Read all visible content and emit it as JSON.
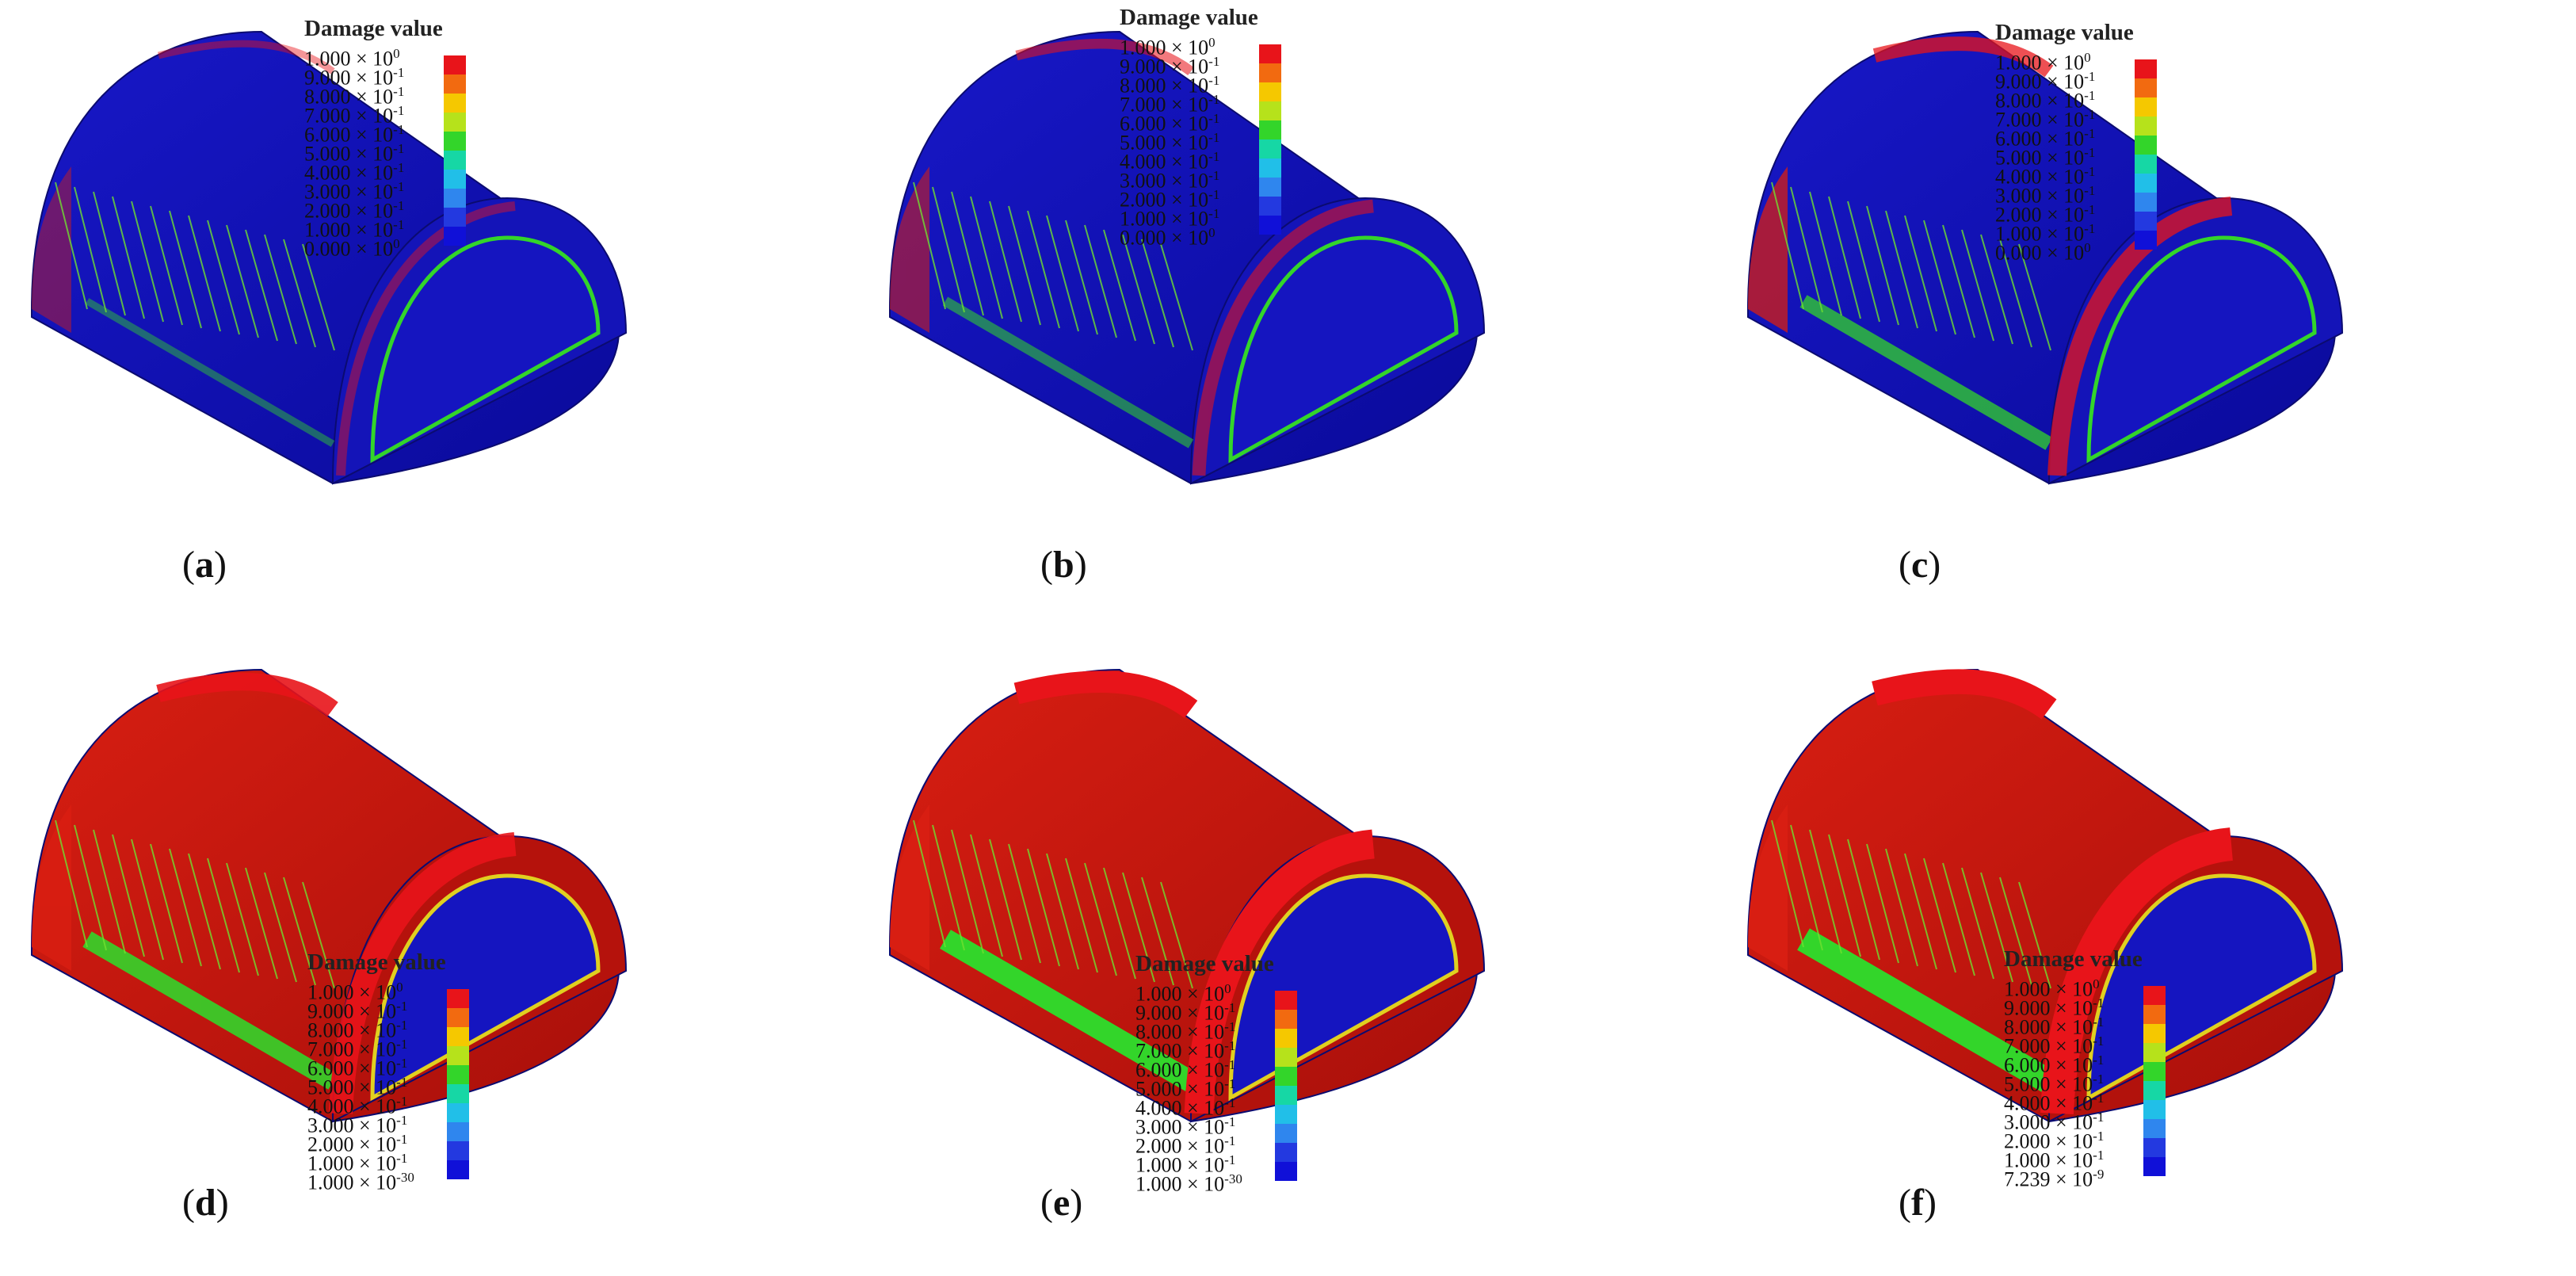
{
  "legend_title": "Damage value",
  "colorbar_colors": [
    "#e8141a",
    "#f26a10",
    "#f5c800",
    "#b6e21b",
    "#33d52a",
    "#16d7a5",
    "#21bfe8",
    "#2f86ee",
    "#2339e0",
    "#1010d8"
  ],
  "panels": [
    {
      "label": "a",
      "ticks": [
        "1.000 × 10",
        "9.000 × 10",
        "8.000 × 10",
        "7.000 × 10",
        "6.000 × 10",
        "5.000 × 10",
        "4.000 × 10",
        "3.000 × 10",
        "2.000 × 10",
        "1.000 × 10",
        "0.000 × 10"
      ],
      "exps": [
        "0",
        "-1",
        "-1",
        "-1",
        "-1",
        "-1",
        "-1",
        "-1",
        "-1",
        "-1",
        "0"
      ],
      "red_fraction": 0.1
    },
    {
      "label": "b",
      "ticks": [
        "1.000 × 10",
        "9.000 × 10",
        "8.000 × 10",
        "7.000 × 10",
        "6.000 × 10",
        "5.000 × 10",
        "4.000 × 10",
        "3.000 × 10",
        "2.000 × 10",
        "1.000 × 10",
        "0.000 × 10"
      ],
      "exps": [
        "0",
        "-1",
        "-1",
        "-1",
        "-1",
        "-1",
        "-1",
        "-1",
        "-1",
        "-1",
        "0"
      ],
      "red_fraction": 0.22
    },
    {
      "label": "c",
      "ticks": [
        "1.000 × 10",
        "9.000 × 10",
        "8.000 × 10",
        "7.000 × 10",
        "6.000 × 10",
        "5.000 × 10",
        "4.000 × 10",
        "3.000 × 10",
        "2.000 × 10",
        "1.000 × 10",
        "0.000 × 10"
      ],
      "exps": [
        "0",
        "-1",
        "-1",
        "-1",
        "-1",
        "-1",
        "-1",
        "-1",
        "-1",
        "-1",
        "0"
      ],
      "red_fraction": 0.4
    },
    {
      "label": "d",
      "ticks": [
        "1.000 × 10",
        "9.000 × 10",
        "8.000 × 10",
        "7.000 × 10",
        "6.000 × 10",
        "5.000 × 10",
        "4.000 × 10",
        "3.000 × 10",
        "2.000 × 10",
        "1.000 × 10",
        "1.000 × 10"
      ],
      "exps": [
        "0",
        "-1",
        "-1",
        "-1",
        "-1",
        "-1",
        "-1",
        "-1",
        "-1",
        "-1",
        "-30"
      ],
      "red_fraction": 0.55
    },
    {
      "label": "e",
      "ticks": [
        "1.000 × 10",
        "9.000 × 10",
        "8.000 × 10",
        "7.000 × 10",
        "6.000 × 10",
        "5.000 × 10",
        "4.000 × 10",
        "3.000 × 10",
        "2.000 × 10",
        "1.000 × 10",
        "1.000 × 10"
      ],
      "exps": [
        "0",
        "-1",
        "-1",
        "-1",
        "-1",
        "-1",
        "-1",
        "-1",
        "-1",
        "-1",
        "-30"
      ],
      "red_fraction": 0.72
    },
    {
      "label": "f",
      "ticks": [
        "1.000 × 10",
        "9.000 × 10",
        "8.000 × 10",
        "7.000 × 10",
        "6.000 × 10",
        "5.000 × 10",
        "4.000 × 10",
        "3.000 × 10",
        "2.000 × 10",
        "1.000 × 10",
        "7.239 × 10"
      ],
      "exps": [
        "0",
        "-1",
        "-1",
        "-1",
        "-1",
        "-1",
        "-1",
        "-1",
        "-1",
        "-1",
        "-9"
      ],
      "red_fraction": 0.85
    }
  ]
}
